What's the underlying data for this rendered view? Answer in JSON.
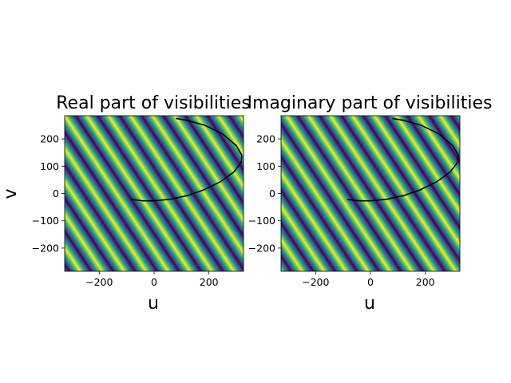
{
  "chart_data": [
    {
      "type": "heatmap",
      "title": "Real part of visibilities",
      "xlabel": "u",
      "ylabel": "v",
      "xlim": [
        -326,
        326
      ],
      "ylim": [
        -285,
        285
      ],
      "xticks": [
        -200,
        0,
        200
      ],
      "yticks": [
        -200,
        -100,
        0,
        100,
        200
      ],
      "fringe": {
        "part": "real",
        "period_u": 80,
        "slope": 1.5
      },
      "track": {
        "type": "line",
        "x": [
          -85,
          -40,
          0,
          60,
          120,
          180,
          240,
          290,
          318,
          320,
          300,
          250,
          185,
          120,
          80
        ],
        "y": [
          -22,
          -27,
          -27,
          -21,
          -8,
          13,
          42,
          78,
          115,
          140,
          175,
          218,
          250,
          268,
          275
        ]
      },
      "colormap": "viridis"
    },
    {
      "type": "heatmap",
      "title": "Imaginary part of visibilities",
      "xlabel": "u",
      "ylabel": "",
      "xlim": [
        -326,
        326
      ],
      "ylim": [
        -285,
        285
      ],
      "xticks": [
        -200,
        0,
        200
      ],
      "yticks": [
        -200,
        -100,
        0,
        100,
        200
      ],
      "fringe": {
        "part": "imaginary",
        "period_u": 80,
        "slope": 1.5
      },
      "track": {
        "type": "line",
        "x": [
          -85,
          -40,
          0,
          60,
          120,
          180,
          240,
          290,
          318,
          320,
          300,
          250,
          185,
          120,
          80
        ],
        "y": [
          -22,
          -27,
          -27,
          -21,
          -8,
          13,
          42,
          78,
          115,
          140,
          175,
          218,
          250,
          268,
          275
        ]
      },
      "colormap": "viridis"
    }
  ]
}
